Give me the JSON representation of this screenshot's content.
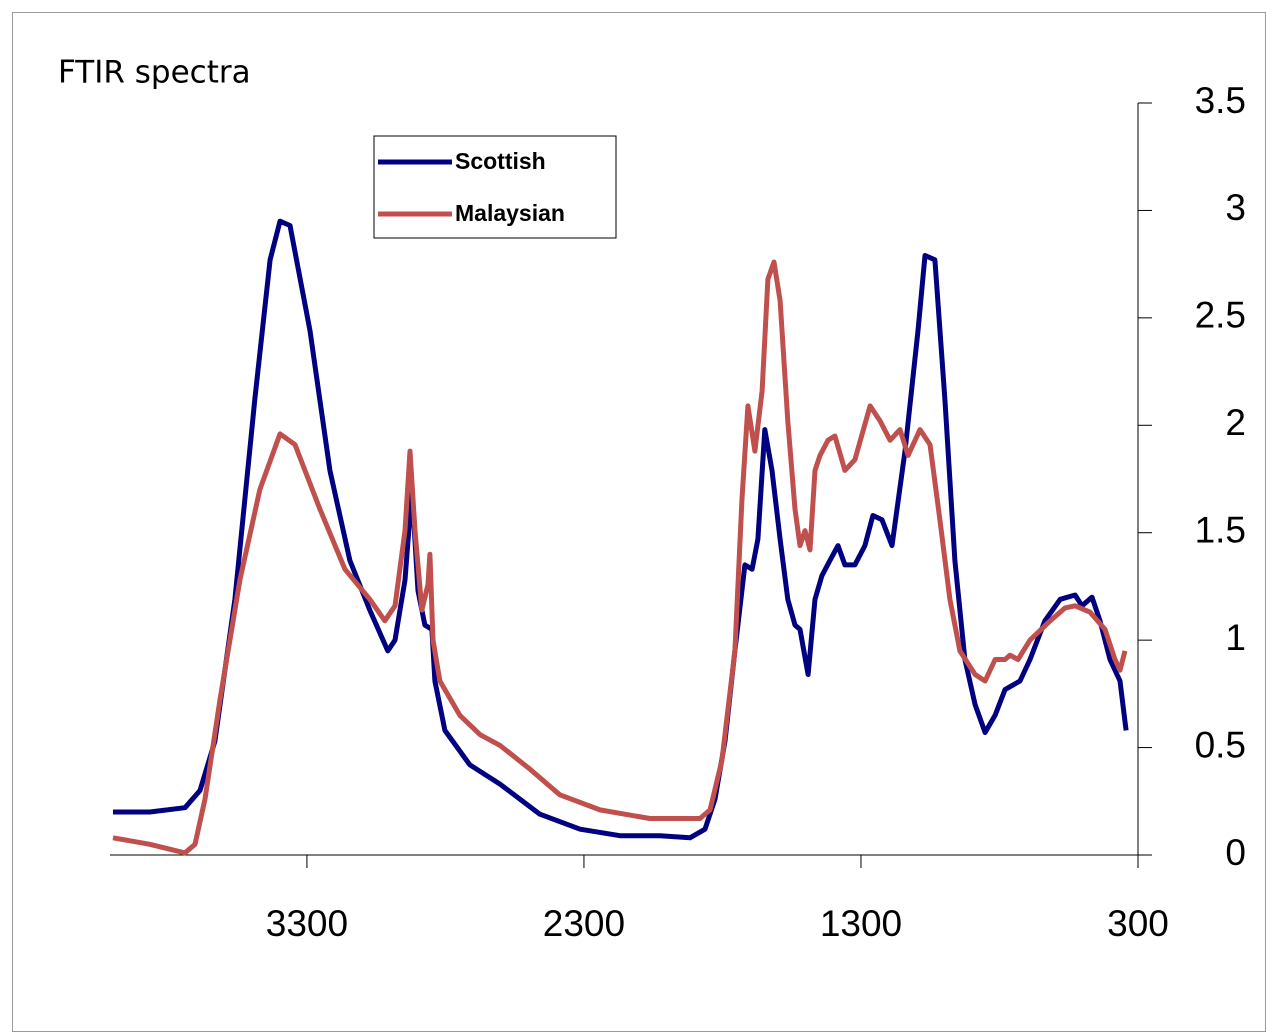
{
  "chart_data": {
    "type": "line",
    "title": "FTIR spectra",
    "xlim": [
      4000,
      300
    ],
    "xticks": [
      3300,
      2300,
      1300,
      300
    ],
    "ylim": [
      0,
      3.5
    ],
    "yticks": [
      0,
      0.5,
      1,
      1.5,
      2,
      2.5,
      3,
      3.5
    ],
    "y_axis_side": "right",
    "legend": "top-center",
    "series": [
      {
        "name": "Scottish",
        "color": "#000080",
        "x": [
          4000,
          3867,
          3740,
          3686,
          3632,
          3560,
          3488,
          3433,
          3397,
          3361,
          3289,
          3217,
          3145,
          3073,
          3008,
          2982,
          2946,
          2921,
          2899,
          2874,
          2849,
          2838,
          2802,
          2712,
          2603,
          2459,
          2314,
          2170,
          2025,
          1917,
          1863,
          1827,
          1791,
          1755,
          1719,
          1693,
          1672,
          1647,
          1621,
          1592,
          1564,
          1538,
          1520,
          1491,
          1466,
          1441,
          1412,
          1383,
          1358,
          1322,
          1286,
          1257,
          1224,
          1188,
          1141,
          1094,
          1069,
          1033,
          997,
          961,
          925,
          888,
          852,
          816,
          780,
          726,
          690,
          636,
          581,
          527,
          502,
          466,
          437,
          401,
          365,
          343
        ],
        "values": [
          0.2,
          0.2,
          0.22,
          0.3,
          0.53,
          1.19,
          2.12,
          2.77,
          2.95,
          2.93,
          2.44,
          1.79,
          1.37,
          1.14,
          0.95,
          1.0,
          1.28,
          1.7,
          1.23,
          1.07,
          1.05,
          0.81,
          0.58,
          0.42,
          0.33,
          0.19,
          0.12,
          0.09,
          0.09,
          0.08,
          0.12,
          0.26,
          0.53,
          0.95,
          1.35,
          1.33,
          1.47,
          1.98,
          1.79,
          1.47,
          1.19,
          1.07,
          1.05,
          0.84,
          1.19,
          1.3,
          1.37,
          1.44,
          1.35,
          1.35,
          1.44,
          1.58,
          1.56,
          1.44,
          1.88,
          2.44,
          2.79,
          2.77,
          2.12,
          1.37,
          0.91,
          0.7,
          0.57,
          0.65,
          0.77,
          0.81,
          0.91,
          1.09,
          1.19,
          1.21,
          1.16,
          1.2,
          1.09,
          0.91,
          0.81,
          0.58
        ]
      },
      {
        "name": "Malaysian",
        "color": "#c0504d",
        "x": [
          4000,
          3867,
          3740,
          3704,
          3668,
          3614,
          3542,
          3470,
          3397,
          3343,
          3253,
          3163,
          3073,
          3019,
          2982,
          2946,
          2928,
          2910,
          2885,
          2863,
          2856,
          2845,
          2820,
          2748,
          2675,
          2603,
          2495,
          2387,
          2242,
          2062,
          1881,
          1845,
          1802,
          1755,
          1730,
          1708,
          1683,
          1657,
          1636,
          1614,
          1592,
          1564,
          1538,
          1520,
          1502,
          1484,
          1466,
          1448,
          1419,
          1394,
          1358,
          1322,
          1267,
          1231,
          1195,
          1159,
          1130,
          1087,
          1051,
          1015,
          979,
          943,
          888,
          852,
          816,
          780,
          762,
          733,
          690,
          617,
          563,
          527,
          473,
          419,
          383,
          365,
          347
        ],
        "values": [
          0.08,
          0.05,
          0.01,
          0.05,
          0.26,
          0.72,
          1.28,
          1.7,
          1.96,
          1.91,
          1.61,
          1.33,
          1.19,
          1.09,
          1.16,
          1.51,
          1.88,
          1.51,
          1.14,
          1.26,
          1.4,
          1.0,
          0.81,
          0.65,
          0.56,
          0.51,
          0.4,
          0.28,
          0.21,
          0.17,
          0.17,
          0.21,
          0.44,
          0.95,
          1.65,
          2.09,
          1.88,
          2.16,
          2.68,
          2.76,
          2.58,
          2.02,
          1.61,
          1.44,
          1.51,
          1.42,
          1.79,
          1.86,
          1.93,
          1.95,
          1.79,
          1.84,
          2.09,
          2.02,
          1.93,
          1.98,
          1.86,
          1.98,
          1.91,
          1.56,
          1.19,
          0.95,
          0.84,
          0.81,
          0.91,
          0.91,
          0.93,
          0.91,
          1.0,
          1.09,
          1.15,
          1.16,
          1.13,
          1.05,
          0.91,
          0.86,
          0.95
        ]
      }
    ]
  }
}
